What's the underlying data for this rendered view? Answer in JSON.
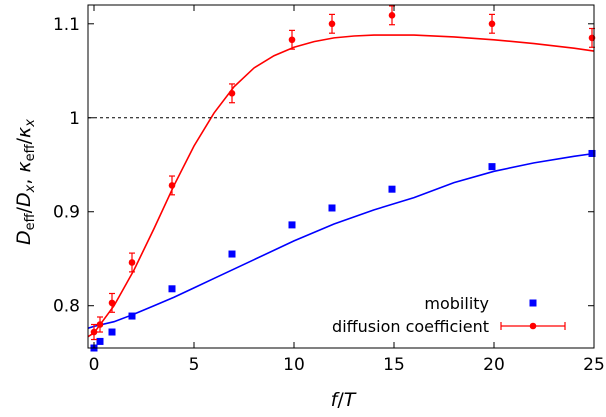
{
  "chart_data": {
    "type": "scatter",
    "x_label": "f/T",
    "y_label": "D_eff/D_x, κ_eff/κ_x",
    "xlim": [
      -0.3,
      25
    ],
    "ylim": [
      0.755,
      1.12
    ],
    "x_ticks": [
      0,
      5,
      10,
      15,
      20,
      25
    ],
    "x_tick_labels": [
      "0",
      "5",
      "10",
      "15",
      "20",
      "25"
    ],
    "y_ticks": [
      0.8,
      0.9,
      1.0,
      1.1
    ],
    "y_tick_labels": [
      "0.8",
      "0.9",
      "1",
      "1.1"
    ],
    "reference_line": {
      "y": 1.0,
      "style": "dashed",
      "color": "#000000"
    },
    "legend_position": "bottom-right",
    "series": [
      {
        "name": "mobility",
        "marker": "square",
        "color": "#0000ff",
        "x": [
          0,
          0.3,
          0.9,
          1.9,
          3.9,
          6.9,
          9.9,
          11.9,
          14.9,
          19.9,
          24.9
        ],
        "y": [
          0.755,
          0.762,
          0.772,
          0.789,
          0.818,
          0.855,
          0.886,
          0.904,
          0.924,
          0.948,
          0.962
        ],
        "fit": {
          "color": "#0000ff",
          "x": [
            -0.3,
            0,
            1,
            2,
            3,
            4,
            5,
            6,
            7,
            8,
            10,
            12,
            14,
            16,
            18,
            20,
            22,
            24,
            25
          ],
          "y": [
            0.776,
            0.778,
            0.783,
            0.791,
            0.8,
            0.809,
            0.819,
            0.829,
            0.839,
            0.849,
            0.869,
            0.887,
            0.902,
            0.915,
            0.931,
            0.943,
            0.952,
            0.959,
            0.962
          ]
        }
      },
      {
        "name": "diffusion coefficient",
        "marker": "circle",
        "color": "#ff0000",
        "error_bars": true,
        "x": [
          0,
          0.3,
          0.9,
          1.9,
          3.9,
          6.9,
          9.9,
          11.9,
          14.9,
          19.9,
          24.9
        ],
        "y": [
          0.772,
          0.78,
          0.803,
          0.846,
          0.928,
          1.026,
          1.083,
          1.1,
          1.109,
          1.1,
          1.085
        ],
        "err": [
          0.008,
          0.008,
          0.01,
          0.01,
          0.01,
          0.01,
          0.01,
          0.01,
          0.01,
          0.01,
          0.01
        ],
        "fit": {
          "color": "#ff0000",
          "x": [
            -0.3,
            0,
            1,
            2,
            3,
            4,
            5,
            6,
            7,
            8,
            9,
            10,
            11,
            12,
            13,
            14,
            15,
            16,
            18,
            20,
            22,
            24,
            25
          ],
          "y": [
            0.767,
            0.771,
            0.8,
            0.838,
            0.882,
            0.928,
            0.97,
            1.005,
            1.033,
            1.053,
            1.066,
            1.075,
            1.081,
            1.085,
            1.087,
            1.088,
            1.088,
            1.088,
            1.086,
            1.083,
            1.079,
            1.074,
            1.071
          ]
        }
      }
    ]
  }
}
